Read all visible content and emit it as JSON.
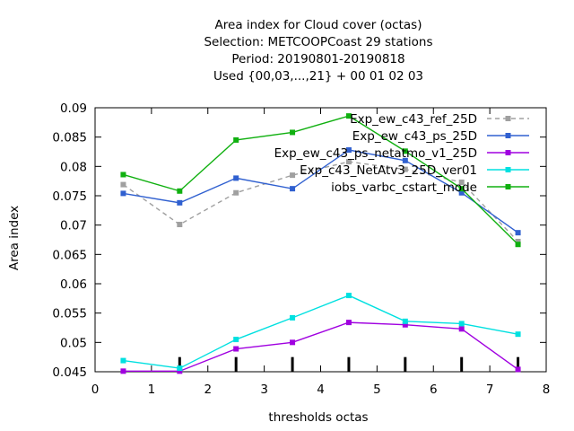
{
  "chart_data": {
    "type": "line",
    "title_lines": [
      "Area index  for Cloud cover (octas)",
      "Selection: METCOOPCoast     29 stations",
      "Period: 20190801-20190818",
      "Used {00,03,...,21} + 00 01 02 03"
    ],
    "xlabel": "thresholds octas",
    "ylabel": "Area index",
    "xlim": [
      0,
      8
    ],
    "ylim": [
      0.045,
      0.09
    ],
    "x_ticks": [
      0,
      1,
      2,
      3,
      4,
      5,
      6,
      7,
      8
    ],
    "y_ticks": [
      "0.045",
      "0.05",
      "0.055",
      "0.06",
      "0.065",
      "0.07",
      "0.075",
      "0.08",
      "0.085",
      "0.09"
    ],
    "bar_markers_x": [
      1.5,
      2.5,
      3.5,
      4.5,
      5.5,
      6.5,
      7.5
    ],
    "bar_markers_y_top": 0.0475,
    "legend_position": "top-right",
    "grid": false,
    "x": [
      0.5,
      1.5,
      2.5,
      3.5,
      4.5,
      5.5,
      6.5,
      7.5
    ],
    "series": [
      {
        "name": "Exp_ew_c43_ref_25D",
        "color": "#a0a0a0",
        "dashed": true,
        "values": [
          0.0769,
          0.0701,
          0.0755,
          0.0785,
          0.0808,
          0.0795,
          0.0773,
          0.0672
        ]
      },
      {
        "name": "Exp_ew_c43_ps_25D",
        "color": "#3060d0",
        "dashed": false,
        "values": [
          0.0754,
          0.0738,
          0.078,
          0.0762,
          0.0828,
          0.081,
          0.0755,
          0.0687
        ]
      },
      {
        "name": "Exp_ew_c43_ps_netatmo_v1_25D",
        "color": "#a000e0",
        "dashed": false,
        "values": [
          0.0451,
          0.0451,
          0.0489,
          0.05,
          0.0534,
          0.053,
          0.0523,
          0.0454
        ]
      },
      {
        "name": "Exp_c43_NetAtv3_25D_ver01",
        "color": "#00e0e0",
        "dashed": false,
        "values": [
          0.0469,
          0.0456,
          0.0505,
          0.0542,
          0.058,
          0.0536,
          0.0532,
          0.0514
        ]
      },
      {
        "name": "iobs_varbc_cstart_mode",
        "color": "#10b010",
        "dashed": false,
        "values": [
          0.0786,
          0.0758,
          0.0845,
          0.0858,
          0.0886,
          0.0826,
          0.0762,
          0.0667
        ]
      }
    ]
  }
}
